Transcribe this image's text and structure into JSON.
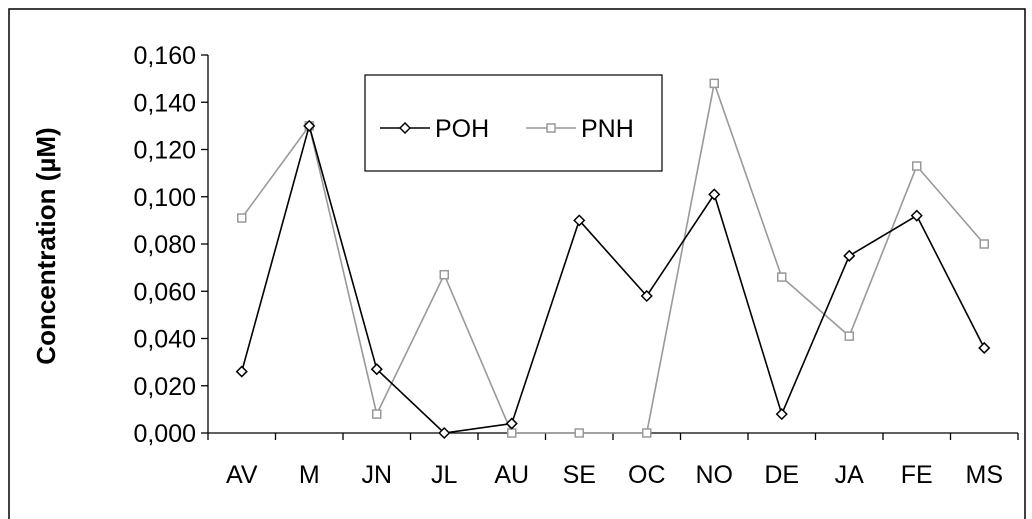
{
  "chart_data": {
    "type": "line",
    "title": "",
    "xlabel": "",
    "ylabel": "Concentration (µM)",
    "categories": [
      "AV",
      "M",
      "JN",
      "JL",
      "AU",
      "SE",
      "OC",
      "NO",
      "DE",
      "JA",
      "FE",
      "MS"
    ],
    "ylim": [
      0,
      0.16
    ],
    "yticks": [
      0.0,
      0.02,
      0.04,
      0.06,
      0.08,
      0.1,
      0.12,
      0.14,
      0.16
    ],
    "ytick_labels": [
      "0,000",
      "0,020",
      "0,040",
      "0,060",
      "0,080",
      "0,100",
      "0,120",
      "0,140",
      "0,160"
    ],
    "grid": false,
    "legend_position": "top-center",
    "series": [
      {
        "name": "POH",
        "color": "#000000",
        "marker": "diamond",
        "values": [
          0.026,
          0.13,
          0.027,
          0.0,
          0.004,
          0.09,
          0.058,
          0.101,
          0.008,
          0.075,
          0.092,
          0.036
        ]
      },
      {
        "name": "PNH",
        "color": "#999999",
        "marker": "square",
        "values": [
          0.091,
          0.13,
          0.008,
          0.067,
          0.0,
          0.0,
          0.0,
          0.148,
          0.066,
          0.041,
          0.113,
          0.08
        ]
      }
    ]
  }
}
